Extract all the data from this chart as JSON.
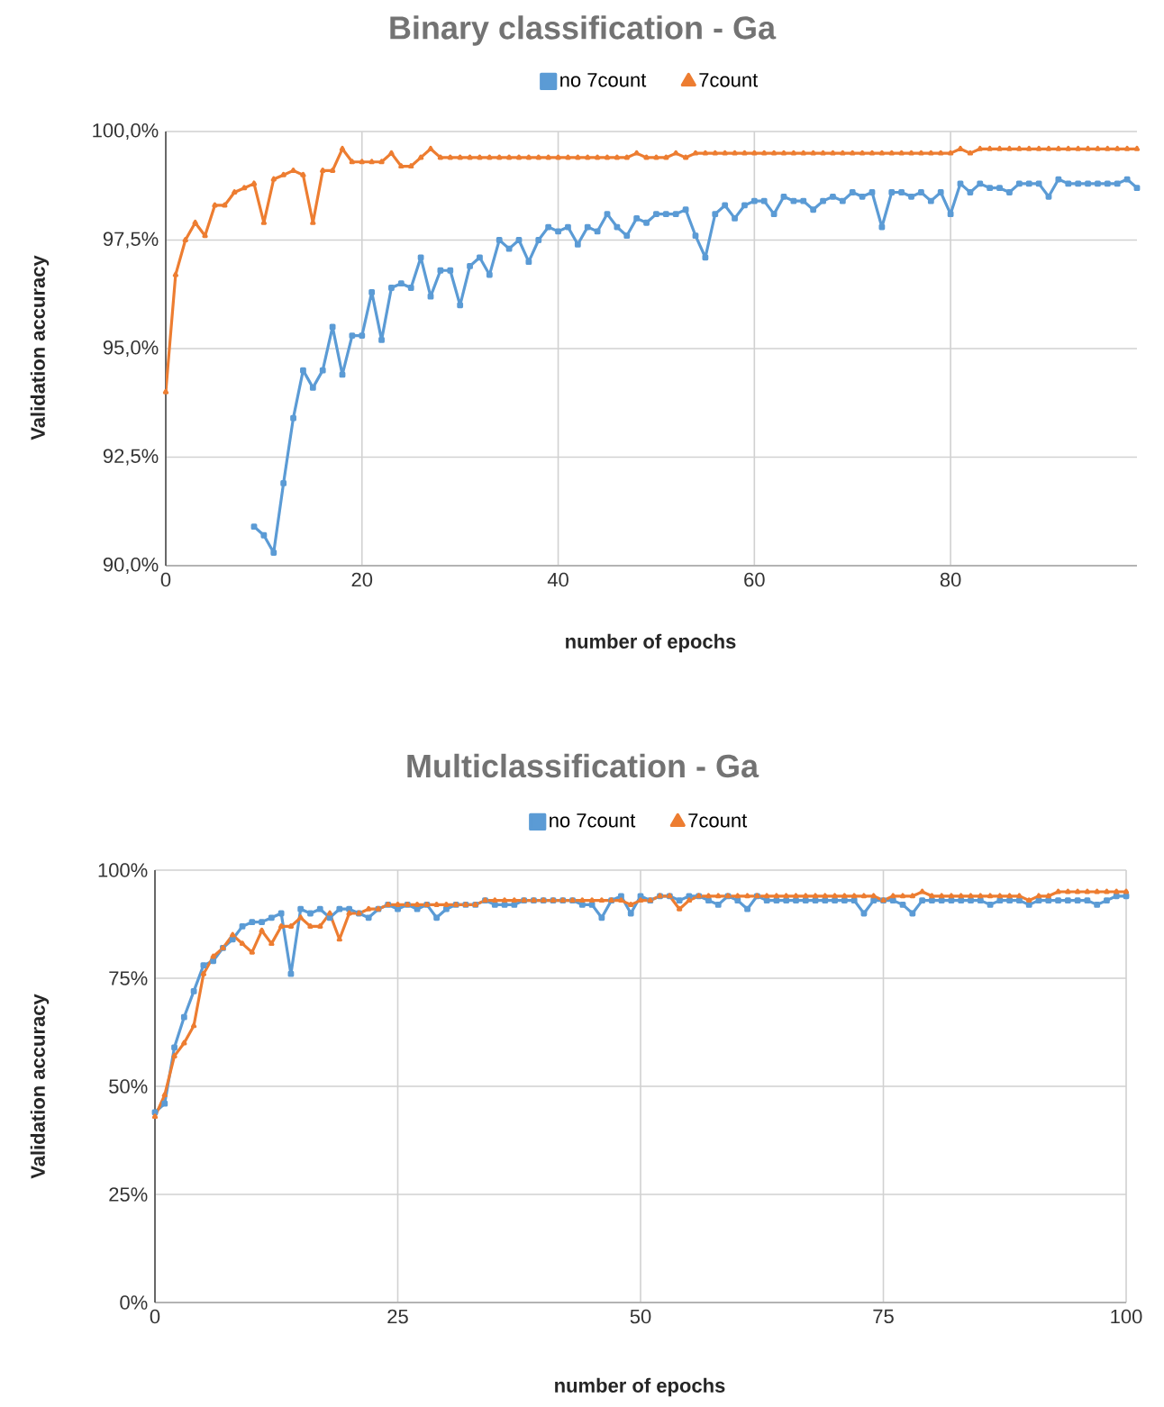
{
  "chart_data": [
    {
      "type": "line",
      "title": "Binary classification - Ga",
      "xlabel": "number of epochs",
      "ylabel": "Validation accuracy",
      "x": [
        0,
        1,
        2,
        3,
        4,
        5,
        6,
        7,
        8,
        9,
        10,
        11,
        12,
        13,
        14,
        15,
        16,
        17,
        18,
        19,
        20,
        21,
        22,
        23,
        24,
        25,
        26,
        27,
        28,
        29,
        30,
        31,
        32,
        33,
        34,
        35,
        36,
        37,
        38,
        39,
        40,
        41,
        42,
        43,
        44,
        45,
        46,
        47,
        48,
        49,
        50,
        51,
        52,
        53,
        54,
        55,
        56,
        57,
        58,
        59,
        60,
        61,
        62,
        63,
        64,
        65,
        66,
        67,
        68,
        69,
        70,
        71,
        72,
        73,
        74,
        75,
        76,
        77,
        78,
        79,
        80,
        81,
        82,
        83,
        84,
        85,
        86,
        87,
        88,
        89,
        90,
        91,
        92,
        93,
        94,
        95,
        96,
        97,
        98,
        99
      ],
      "series": [
        {
          "name": "no 7count",
          "color": "#5b9bd5",
          "marker": "square",
          "values": [
            null,
            null,
            null,
            null,
            null,
            null,
            null,
            null,
            null,
            90.9,
            90.7,
            90.3,
            91.9,
            93.4,
            94.5,
            94.1,
            94.5,
            95.5,
            94.4,
            95.3,
            95.3,
            96.3,
            95.2,
            96.4,
            96.5,
            96.4,
            97.1,
            96.2,
            96.8,
            96.8,
            96,
            96.9,
            97.1,
            96.7,
            97.5,
            97.3,
            97.5,
            97,
            97.5,
            97.8,
            97.7,
            97.8,
            97.4,
            97.8,
            97.7,
            98.1,
            97.8,
            97.6,
            98,
            97.9,
            98.1,
            98.1,
            98.1,
            98.2,
            97.6,
            97.1,
            98.1,
            98.3,
            98,
            98.3,
            98.4,
            98.4,
            98.1,
            98.5,
            98.4,
            98.4,
            98.2,
            98.4,
            98.5,
            98.4,
            98.6,
            98.5,
            98.6,
            97.8,
            98.6,
            98.6,
            98.5,
            98.6,
            98.4,
            98.6,
            98.1,
            98.8,
            98.6,
            98.8,
            98.7,
            98.7,
            98.6,
            98.8,
            98.8,
            98.8,
            98.5,
            98.9,
            98.8,
            98.8,
            98.8,
            98.8,
            98.8,
            98.8,
            98.9,
            98.7
          ]
        },
        {
          "name": "7count",
          "color": "#ed7d31",
          "marker": "triangle",
          "values": [
            94,
            96.7,
            97.5,
            97.9,
            97.6,
            98.3,
            98.3,
            98.6,
            98.7,
            98.8,
            97.9,
            98.9,
            99,
            99.1,
            99,
            97.9,
            99.1,
            99.1,
            99.6,
            99.3,
            99.3,
            99.3,
            99.3,
            99.5,
            99.2,
            99.2,
            99.4,
            99.6,
            99.4,
            99.4,
            99.4,
            99.4,
            99.4,
            99.4,
            99.4,
            99.4,
            99.4,
            99.4,
            99.4,
            99.4,
            99.4,
            99.4,
            99.4,
            99.4,
            99.4,
            99.4,
            99.4,
            99.4,
            99.5,
            99.4,
            99.4,
            99.4,
            99.5,
            99.4,
            99.5,
            99.5,
            99.5,
            99.5,
            99.5,
            99.5,
            99.5,
            99.5,
            99.5,
            99.5,
            99.5,
            99.5,
            99.5,
            99.5,
            99.5,
            99.5,
            99.5,
            99.5,
            99.5,
            99.5,
            99.5,
            99.5,
            99.5,
            99.5,
            99.5,
            99.5,
            99.5,
            99.6,
            99.5,
            99.6,
            99.6,
            99.6,
            99.6,
            99.6,
            99.6,
            99.6,
            99.6,
            99.6,
            99.6,
            99.6,
            99.6,
            99.6,
            99.6,
            99.6,
            99.6,
            99.6
          ]
        }
      ],
      "xlim": [
        0,
        99
      ],
      "xticks": [
        0,
        20,
        40,
        60,
        80
      ],
      "ylim": [
        90,
        100
      ],
      "yticks": [
        {
          "value": 90,
          "label": "90,0%"
        },
        {
          "value": 92.5,
          "label": "92,5%"
        },
        {
          "value": 95,
          "label": "95,0%"
        },
        {
          "value": 97.5,
          "label": "97,5%"
        },
        {
          "value": 100,
          "label": "100,0%"
        }
      ],
      "grid": true,
      "legend": "top"
    },
    {
      "type": "line",
      "title": "Multiclassification - Ga",
      "xlabel": "number of epochs",
      "ylabel": "Validation accuracy",
      "x": [
        0,
        1,
        2,
        3,
        4,
        5,
        6,
        7,
        8,
        9,
        10,
        11,
        12,
        13,
        14,
        15,
        16,
        17,
        18,
        19,
        20,
        21,
        22,
        23,
        24,
        25,
        26,
        27,
        28,
        29,
        30,
        31,
        32,
        33,
        34,
        35,
        36,
        37,
        38,
        39,
        40,
        41,
        42,
        43,
        44,
        45,
        46,
        47,
        48,
        49,
        50,
        51,
        52,
        53,
        54,
        55,
        56,
        57,
        58,
        59,
        60,
        61,
        62,
        63,
        64,
        65,
        66,
        67,
        68,
        69,
        70,
        71,
        72,
        73,
        74,
        75,
        76,
        77,
        78,
        79,
        80,
        81,
        82,
        83,
        84,
        85,
        86,
        87,
        88,
        89,
        90,
        91,
        92,
        93,
        94,
        95,
        96,
        97,
        98,
        99,
        100
      ],
      "series": [
        {
          "name": "no 7count",
          "color": "#5b9bd5",
          "marker": "square",
          "values": [
            44,
            46,
            59,
            66,
            72,
            78,
            79,
            82,
            84,
            87,
            88,
            88,
            89,
            90,
            76,
            91,
            90,
            91,
            89,
            91,
            91,
            90,
            89,
            91,
            92,
            91,
            92,
            91,
            92,
            89,
            91,
            92,
            92,
            92,
            93,
            92,
            92,
            92,
            93,
            93,
            93,
            93,
            93,
            93,
            92,
            92,
            89,
            93,
            94,
            90,
            94,
            93,
            94,
            94,
            93,
            94,
            94,
            93,
            92,
            94,
            93,
            91,
            94,
            93,
            93,
            93,
            93,
            93,
            93,
            93,
            93,
            93,
            93,
            90,
            93,
            93,
            93,
            92,
            90,
            93,
            93,
            93,
            93,
            93,
            93,
            93,
            92,
            93,
            93,
            93,
            92,
            93,
            93,
            93,
            93,
            93,
            93,
            92,
            93,
            94,
            94
          ]
        },
        {
          "name": "7count",
          "color": "#ed7d31",
          "marker": "triangle",
          "values": [
            43,
            48,
            57,
            60,
            64,
            76,
            80,
            82,
            85,
            83,
            81,
            86,
            83,
            87,
            87,
            89,
            87,
            87,
            90,
            84,
            90,
            90,
            91,
            91,
            92,
            92,
            92,
            92,
            92,
            92,
            92,
            92,
            92,
            92,
            93,
            93,
            93,
            93,
            93,
            93,
            93,
            93,
            93,
            93,
            93,
            93,
            93,
            93,
            93,
            92,
            93,
            93,
            94,
            94,
            91,
            93,
            94,
            94,
            94,
            94,
            94,
            94,
            94,
            94,
            94,
            94,
            94,
            94,
            94,
            94,
            94,
            94,
            94,
            94,
            94,
            93,
            94,
            94,
            94,
            95,
            94,
            94,
            94,
            94,
            94,
            94,
            94,
            94,
            94,
            94,
            93,
            94,
            94,
            95,
            95,
            95,
            95,
            95,
            95,
            95,
            95
          ]
        }
      ],
      "xlim": [
        0,
        100
      ],
      "xticks": [
        0,
        25,
        50,
        75,
        100
      ],
      "ylim": [
        0,
        100
      ],
      "yticks": [
        {
          "value": 0,
          "label": "0%"
        },
        {
          "value": 25,
          "label": "25%"
        },
        {
          "value": 50,
          "label": "50%"
        },
        {
          "value": 75,
          "label": "75%"
        },
        {
          "value": 100,
          "label": "100%"
        }
      ],
      "grid": true,
      "legend": "top"
    }
  ]
}
